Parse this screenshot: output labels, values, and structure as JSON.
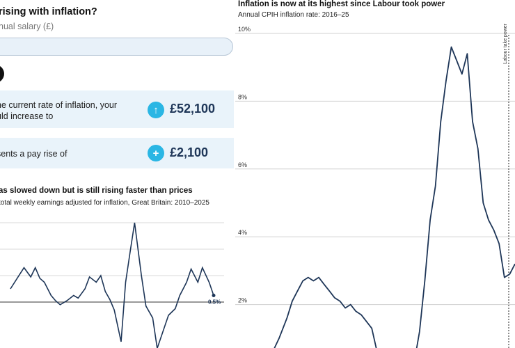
{
  "calculator": {
    "question": "rising with inflation?",
    "salary_label": "nual salary (£)",
    "salary_value": ""
  },
  "results": [
    {
      "text_line1": "he current rate of inflation, your",
      "text_line2": "uld increase to",
      "icon": "arrow-up-icon",
      "value": "£52,100"
    },
    {
      "text_line1": "sents a pay rise of",
      "icon": "plus-icon",
      "value": "£2,100"
    }
  ],
  "colors": {
    "accent": "#2ab6e4",
    "value_text": "#1d3557",
    "card_bg": "#e9f3fa",
    "line": "#1d3557"
  },
  "chart_data": [
    {
      "type": "line",
      "title": "as slowed down but is still rising faster than prices",
      "subtitle": "total weekly earnings adjusted for inflation, Great Britain: 2010–2025",
      "end_label": "0.5%",
      "x_range": [
        2010,
        2025
      ],
      "grid": true,
      "series": [
        {
          "x": [
            2016.0,
            2016.3,
            2016.6,
            2016.9,
            2017.1,
            2017.3,
            2017.5,
            2017.8,
            2018.0,
            2018.2,
            2018.5,
            2018.8,
            2019.0,
            2019.3,
            2019.5,
            2019.8,
            2020.0,
            2020.2,
            2020.4,
            2020.6,
            2020.9,
            2021.1,
            2021.3,
            2021.5,
            2021.8,
            2022.0,
            2022.3,
            2022.5,
            2022.8,
            2023.0,
            2023.3,
            2023.5,
            2023.8,
            2024.0,
            2024.3,
            2024.5,
            2024.8,
            2025.0
          ],
          "y": [
            1.0,
            1.8,
            2.6,
            1.9,
            2.6,
            1.8,
            1.5,
            0.5,
            0.1,
            -0.2,
            0.1,
            0.5,
            0.3,
            1.0,
            1.9,
            1.5,
            2.0,
            0.8,
            0.2,
            -0.6,
            -3.0,
            1.5,
            3.8,
            6.0,
            2.0,
            -0.3,
            -1.2,
            -3.5,
            -2.0,
            -1.0,
            -0.5,
            0.5,
            1.5,
            2.5,
            1.5,
            2.6,
            1.5,
            0.5
          ]
        }
      ]
    },
    {
      "type": "line",
      "title": "Inflation is now at its highest since Labour took power",
      "subtitle": "Annual CPIH inflation rate: 2016–25",
      "yticks": [
        "10%",
        "8%",
        "6%",
        "4%",
        "2%"
      ],
      "ylim": [
        0,
        10
      ],
      "x_range": [
        2016,
        2025.5
      ],
      "annotation": "Labour take power",
      "grid": true,
      "series": [
        {
          "x": [
            2016.0,
            2016.3,
            2016.6,
            2016.9,
            2017.1,
            2017.3,
            2017.5,
            2017.7,
            2017.9,
            2018.1,
            2018.3,
            2018.5,
            2018.7,
            2018.9,
            2019.1,
            2019.3,
            2019.5,
            2019.7,
            2019.9,
            2020.1,
            2020.3,
            2020.5,
            2020.7,
            2020.9,
            2021.1,
            2021.3,
            2021.5,
            2021.7,
            2021.9,
            2022.1,
            2022.3,
            2022.5,
            2022.7,
            2022.9,
            2023.1,
            2023.3,
            2023.5,
            2023.7,
            2023.9,
            2024.1,
            2024.3,
            2024.5,
            2024.7,
            2024.9,
            2025.1,
            2025.3,
            2025.5
          ],
          "y": [
            0.2,
            0.5,
            1.0,
            1.6,
            2.1,
            2.4,
            2.7,
            2.8,
            2.7,
            2.8,
            2.6,
            2.4,
            2.2,
            2.1,
            1.9,
            2.0,
            1.8,
            1.7,
            1.5,
            1.3,
            0.6,
            0.4,
            0.2,
            0.3,
            0.5,
            0.2,
            0.4,
            0.3,
            1.2,
            2.7,
            4.5,
            5.5,
            7.4,
            8.6,
            9.6,
            9.2,
            8.8,
            9.4,
            7.4,
            6.6,
            5.0,
            4.5,
            4.2,
            3.8,
            2.8,
            2.9,
            3.2
          ]
        }
      ]
    }
  ]
}
